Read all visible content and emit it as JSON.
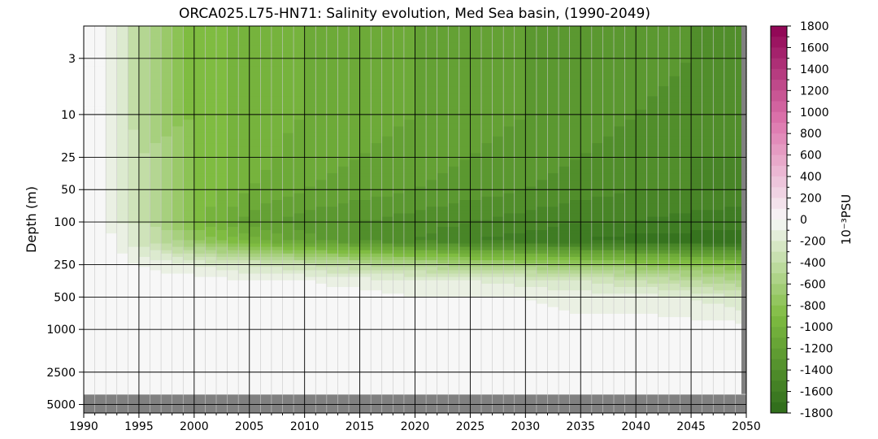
{
  "chart_data": {
    "type": "heatmap",
    "title": "ORCA025.L75-HN71: Salinity evolution, Med Sea basin, (1990-2049)",
    "xlabel": "",
    "ylabel": "Depth (m)",
    "x_ticks": [
      1990,
      1995,
      2000,
      2005,
      2010,
      2015,
      2020,
      2025,
      2030,
      2035,
      2040,
      2045,
      2050
    ],
    "xlim": [
      1990,
      2050
    ],
    "y_ticks": [
      3,
      10,
      25,
      50,
      100,
      250,
      500,
      1000,
      2500,
      5000
    ],
    "y_scale": "log",
    "ylim": [
      6000,
      1.5
    ],
    "grid": true,
    "land_color": "#808080",
    "colorbar": {
      "label": "10⁻³PSU",
      "min": -1800,
      "max": 1800,
      "ticks": [
        1800,
        1600,
        1400,
        1200,
        1000,
        800,
        600,
        400,
        200,
        0,
        -200,
        -400,
        -600,
        -800,
        -1000,
        -1200,
        -1400,
        -1600,
        -1800
      ],
      "colormap": "PiYG",
      "low_color": "#2d6a1a",
      "zero_color": "#f7f7f7",
      "high_color": "#8e0152"
    },
    "series": [
      {
        "time": [
          1990,
          1991,
          1993,
          1995,
          2000,
          2005,
          2010,
          2015,
          2020,
          2025,
          2030,
          2035,
          2040,
          2045,
          2050
        ],
        "depth": [
          1.5,
          3,
          10,
          25,
          50,
          100,
          150,
          250,
          350,
          500,
          1000,
          2500,
          4000
        ],
        "values": [
          [
            0,
            0,
            -100,
            -500,
            -900,
            -1000,
            -1050,
            -1100,
            -1150,
            -1200,
            -1250,
            -1300,
            -1300,
            -1350,
            -1400
          ],
          [
            0,
            0,
            -100,
            -500,
            -900,
            -1000,
            -1050,
            -1100,
            -1150,
            -1200,
            -1250,
            -1300,
            -1300,
            -1350,
            -1400
          ],
          [
            0,
            0,
            -100,
            -450,
            -900,
            -1000,
            -1050,
            -1100,
            -1150,
            -1200,
            -1250,
            -1300,
            -1350,
            -1400,
            -1400
          ],
          [
            0,
            0,
            -100,
            -400,
            -850,
            -1000,
            -1100,
            -1150,
            -1200,
            -1250,
            -1300,
            -1350,
            -1400,
            -1450,
            -1450
          ],
          [
            0,
            0,
            -100,
            -350,
            -850,
            -1050,
            -1150,
            -1200,
            -1250,
            -1300,
            -1350,
            -1400,
            -1450,
            -1450,
            -1500
          ],
          [
            0,
            0,
            -100,
            -300,
            -900,
            -1200,
            -1300,
            -1350,
            -1400,
            -1450,
            -1500,
            -1550,
            -1550,
            -1600,
            -1600
          ],
          [
            0,
            0,
            -50,
            -250,
            -700,
            -1000,
            -1200,
            -1350,
            -1450,
            -1550,
            -1600,
            -1650,
            -1700,
            -1700,
            -1750
          ],
          [
            0,
            0,
            0,
            -50,
            -150,
            -250,
            -350,
            -450,
            -500,
            -600,
            -650,
            -700,
            -750,
            -800,
            -850
          ],
          [
            0,
            0,
            0,
            0,
            0,
            -50,
            -50,
            -100,
            -150,
            -150,
            -200,
            -250,
            -350,
            -450,
            -550
          ],
          [
            0,
            0,
            0,
            0,
            0,
            0,
            0,
            0,
            -50,
            -50,
            -50,
            -100,
            -100,
            -150,
            -250
          ],
          [
            0,
            0,
            0,
            0,
            0,
            0,
            0,
            0,
            0,
            0,
            0,
            0,
            0,
            0,
            0
          ],
          [
            0,
            0,
            0,
            0,
            0,
            0,
            0,
            0,
            0,
            0,
            0,
            0,
            0,
            0,
            0
          ],
          [
            0,
            0,
            0,
            0,
            0,
            0,
            0,
            0,
            0,
            0,
            0,
            0,
            0,
            0,
            0
          ]
        ],
        "data_max_depth": 4000
      }
    ]
  }
}
